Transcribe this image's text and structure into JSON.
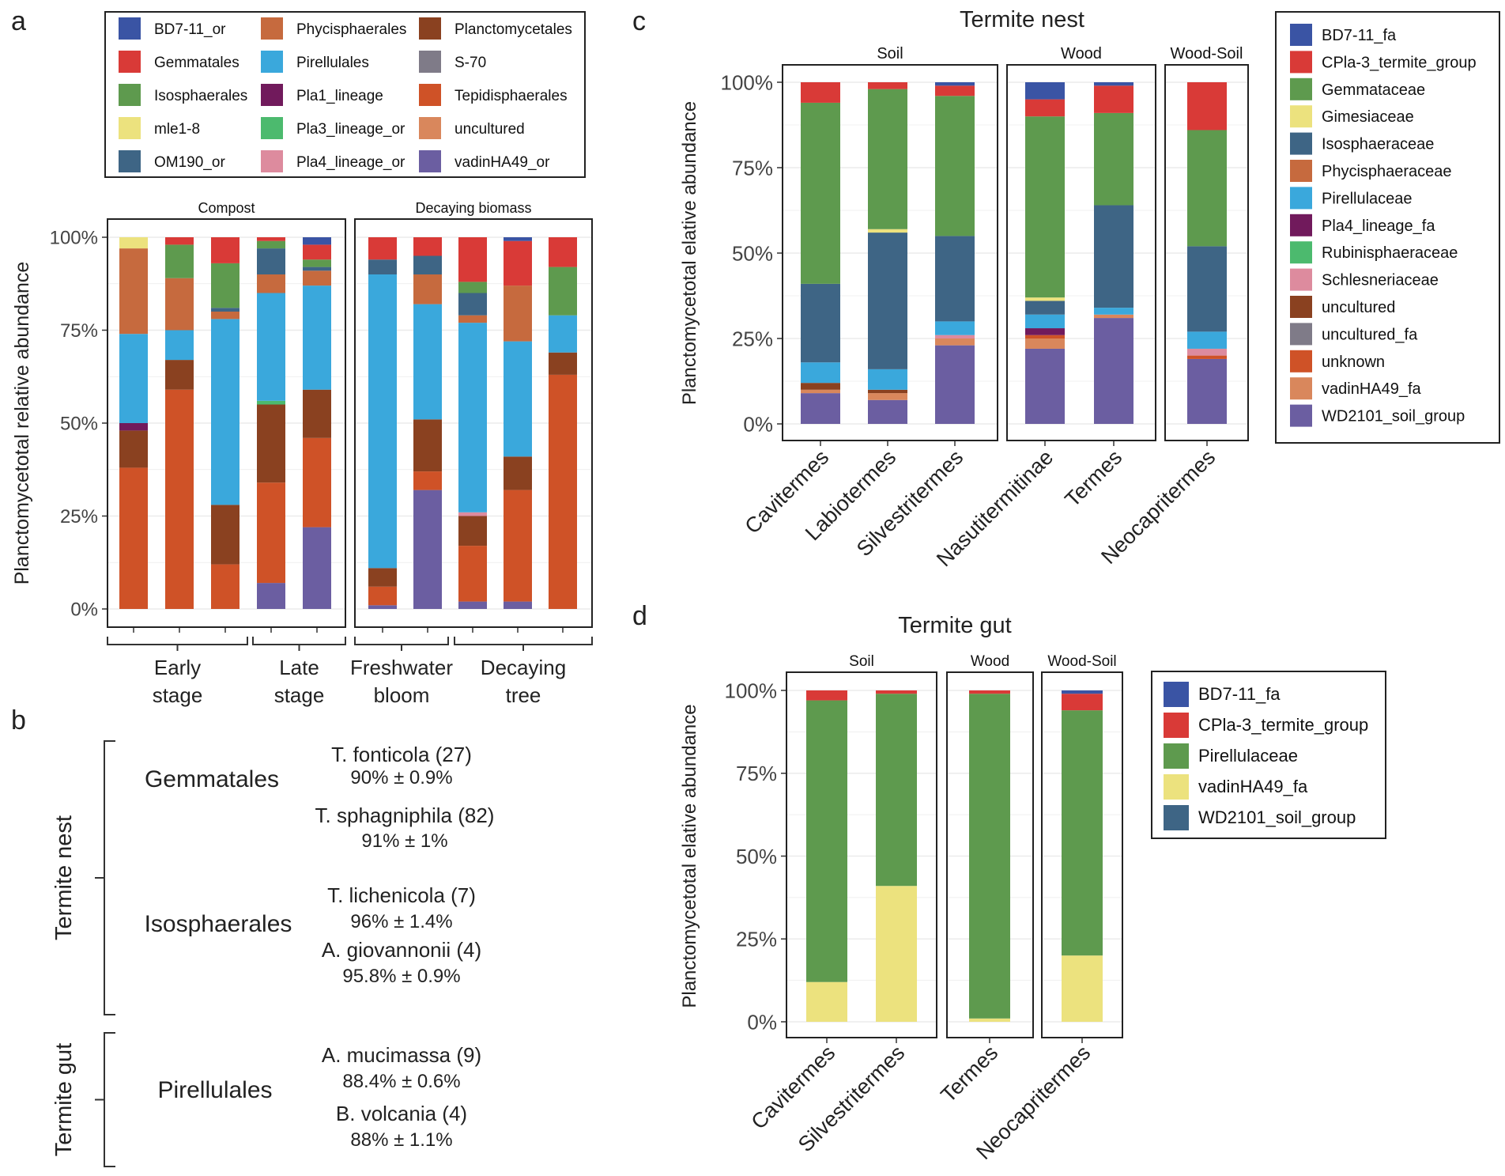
{
  "panel_letters": {
    "a": "a",
    "b": "b",
    "c": "c",
    "d": "d"
  },
  "chart_data": [
    {
      "panel": "a",
      "type": "bar",
      "stacked": true,
      "ylabel": "Planctomycetotal relative abundance",
      "yticks": [
        "0%",
        "25%",
        "50%",
        "75%",
        "100%"
      ],
      "ylim": [
        0,
        1
      ],
      "facets": [
        "Compost",
        "Decaying biomass"
      ],
      "groups": [
        {
          "label": [
            "Early",
            "stage"
          ]
        },
        {
          "label": [
            "Late",
            "stage"
          ]
        },
        {
          "label": [
            "Freshwater",
            "bloom"
          ]
        },
        {
          "label": [
            "Decaying",
            "tree"
          ]
        }
      ],
      "legend": [
        {
          "name": "BD7-11_or",
          "color": "#3a54a4"
        },
        {
          "name": "Gemmatales",
          "color": "#d93a37"
        },
        {
          "name": "Isosphaerales",
          "color": "#5e9a4e"
        },
        {
          "name": "mle1-8",
          "color": "#ece27e"
        },
        {
          "name": "OM190_or",
          "color": "#3e6585"
        },
        {
          "name": "Phycisphaerales",
          "color": "#c66a3e"
        },
        {
          "name": "Pirellulales",
          "color": "#3aa8dc"
        },
        {
          "name": "Pla1_lineage",
          "color": "#711a5c"
        },
        {
          "name": "Pla3_lineage_or",
          "color": "#4cba6e"
        },
        {
          "name": "Pla4_lineage_or",
          "color": "#dd8b9e"
        },
        {
          "name": "Planctomycetales",
          "color": "#8a4120"
        },
        {
          "name": "S-70",
          "color": "#7f7b88"
        },
        {
          "name": "Tepidisphaerales",
          "color": "#cf5227"
        },
        {
          "name": "uncultured",
          "color": "#d9875c"
        },
        {
          "name": "vadinHA49_or",
          "color": "#6b5ea1"
        }
      ],
      "bars": [
        {
          "facet": 0,
          "segments": [
            [
              "Tepidisphaerales",
              0.38
            ],
            [
              "Planctomycetales",
              0.1
            ],
            [
              "Pla1_lineage",
              0.02
            ],
            [
              "Pirellulales",
              0.24
            ],
            [
              "Phycisphaerales",
              0.23
            ],
            [
              "mle1-8",
              0.03
            ]
          ]
        },
        {
          "facet": 0,
          "segments": [
            [
              "Tepidisphaerales",
              0.59
            ],
            [
              "Planctomycetales",
              0.08
            ],
            [
              "Pirellulales",
              0.08
            ],
            [
              "Phycisphaerales",
              0.14
            ],
            [
              "Isosphaerales",
              0.09
            ],
            [
              "Gemmatales",
              0.02
            ]
          ]
        },
        {
          "facet": 0,
          "segments": [
            [
              "Tepidisphaerales",
              0.12
            ],
            [
              "Planctomycetales",
              0.16
            ],
            [
              "Pirellulales",
              0.5
            ],
            [
              "Phycisphaerales",
              0.02
            ],
            [
              "OM190_or",
              0.01
            ],
            [
              "Isosphaerales",
              0.12
            ],
            [
              "Gemmatales",
              0.07
            ]
          ]
        },
        {
          "facet": 0,
          "segments": [
            [
              "vadinHA49_or",
              0.07
            ],
            [
              "Tepidisphaerales",
              0.27
            ],
            [
              "Planctomycetales",
              0.21
            ],
            [
              "Pla3_lineage_or",
              0.01
            ],
            [
              "Pirellulales",
              0.29
            ],
            [
              "Phycisphaerales",
              0.05
            ],
            [
              "OM190_or",
              0.07
            ],
            [
              "Isosphaerales",
              0.02
            ],
            [
              "Gemmatales",
              0.01
            ]
          ]
        },
        {
          "facet": 0,
          "segments": [
            [
              "vadinHA49_or",
              0.22
            ],
            [
              "Tepidisphaerales",
              0.24
            ],
            [
              "Planctomycetales",
              0.13
            ],
            [
              "Pirellulales",
              0.28
            ],
            [
              "Phycisphaerales",
              0.04
            ],
            [
              "OM190_or",
              0.01
            ],
            [
              "Isosphaerales",
              0.02
            ],
            [
              "Gemmatales",
              0.04
            ],
            [
              "BD7-11_or",
              0.02
            ]
          ]
        },
        {
          "facet": 1,
          "segments": [
            [
              "vadinHA49_or",
              0.01
            ],
            [
              "Tepidisphaerales",
              0.05
            ],
            [
              "Planctomycetales",
              0.05
            ],
            [
              "Pirellulales",
              0.79
            ],
            [
              "OM190_or",
              0.04
            ],
            [
              "Gemmatales",
              0.06
            ]
          ]
        },
        {
          "facet": 1,
          "segments": [
            [
              "vadinHA49_or",
              0.32
            ],
            [
              "Tepidisphaerales",
              0.05
            ],
            [
              "Planctomycetales",
              0.14
            ],
            [
              "Pirellulales",
              0.31
            ],
            [
              "Phycisphaerales",
              0.08
            ],
            [
              "OM190_or",
              0.05
            ],
            [
              "Gemmatales",
              0.05
            ]
          ]
        },
        {
          "facet": 1,
          "segments": [
            [
              "vadinHA49_or",
              0.02
            ],
            [
              "Tepidisphaerales",
              0.15
            ],
            [
              "Planctomycetales",
              0.08
            ],
            [
              "Pla4_lineage_or",
              0.01
            ],
            [
              "Pirellulales",
              0.51
            ],
            [
              "Phycisphaerales",
              0.02
            ],
            [
              "OM190_or",
              0.06
            ],
            [
              "Isosphaerales",
              0.03
            ],
            [
              "Gemmatales",
              0.12
            ]
          ]
        },
        {
          "facet": 1,
          "segments": [
            [
              "vadinHA49_or",
              0.02
            ],
            [
              "Tepidisphaerales",
              0.3
            ],
            [
              "Planctomycetales",
              0.09
            ],
            [
              "Pirellulales",
              0.31
            ],
            [
              "Phycisphaerales",
              0.15
            ],
            [
              "Gemmatales",
              0.12
            ],
            [
              "BD7-11_or",
              0.01
            ]
          ]
        },
        {
          "facet": 1,
          "segments": [
            [
              "Tepidisphaerales",
              0.63
            ],
            [
              "Planctomycetales",
              0.06
            ],
            [
              "Pirellulales",
              0.1
            ],
            [
              "Isosphaerales",
              0.13
            ],
            [
              "Gemmatales",
              0.08
            ]
          ]
        }
      ]
    },
    {
      "panel": "c",
      "type": "bar",
      "stacked": true,
      "title": "Termite nest",
      "ylabel": "Planctomycetotal  elative abundance",
      "yticks": [
        "0%",
        "25%",
        "50%",
        "75%",
        "100%"
      ],
      "ylim": [
        0,
        1
      ],
      "facets": [
        "Soil",
        "Wood",
        "Wood-Soil"
      ],
      "categories": [
        "Cavitermes",
        "Labiotermes",
        "Silvestritermes",
        "Nasutitermitinae",
        "Termes",
        "Neocapritermes"
      ],
      "legend": [
        {
          "name": "BD7-11_fa",
          "color": "#3a54a4"
        },
        {
          "name": "CPla-3_termite_group",
          "color": "#d93a37"
        },
        {
          "name": "Gemmataceae",
          "color": "#5e9a4e"
        },
        {
          "name": "Gimesiaceae",
          "color": "#ece27e"
        },
        {
          "name": "Isosphaeraceae",
          "color": "#3e6585"
        },
        {
          "name": "Phycisphaeraceae",
          "color": "#c66a3e"
        },
        {
          "name": "Pirellulaceae",
          "color": "#3aa8dc"
        },
        {
          "name": "Pla4_lineage_fa",
          "color": "#711a5c"
        },
        {
          "name": "Rubinisphaeraceae",
          "color": "#4cba6e"
        },
        {
          "name": "Schlesneriaceae",
          "color": "#dd8b9e"
        },
        {
          "name": "uncultured",
          "color": "#8a4120"
        },
        {
          "name": "uncultured_fa",
          "color": "#7f7b88"
        },
        {
          "name": "unknown",
          "color": "#cf5227"
        },
        {
          "name": "vadinHA49_fa",
          "color": "#d9875c"
        },
        {
          "name": "WD2101_soil_group",
          "color": "#6b5ea1"
        }
      ],
      "bars": [
        {
          "facet": 0,
          "segments": [
            [
              "WD2101_soil_group",
              0.09
            ],
            [
              "vadinHA49_fa",
              0.01
            ],
            [
              "uncultured",
              0.02
            ],
            [
              "Pirellulaceae",
              0.06
            ],
            [
              "Isosphaeraceae",
              0.23
            ],
            [
              "Gemmataceae",
              0.53
            ],
            [
              "CPla-3_termite_group",
              0.06
            ]
          ]
        },
        {
          "facet": 0,
          "segments": [
            [
              "WD2101_soil_group",
              0.07
            ],
            [
              "vadinHA49_fa",
              0.02
            ],
            [
              "uncultured",
              0.01
            ],
            [
              "Pirellulaceae",
              0.06
            ],
            [
              "Isosphaeraceae",
              0.4
            ],
            [
              "Gimesiaceae",
              0.01
            ],
            [
              "Gemmataceae",
              0.41
            ],
            [
              "CPla-3_termite_group",
              0.02
            ]
          ]
        },
        {
          "facet": 0,
          "segments": [
            [
              "WD2101_soil_group",
              0.23
            ],
            [
              "vadinHA49_fa",
              0.02
            ],
            [
              "Schlesneriaceae",
              0.01
            ],
            [
              "Pirellulaceae",
              0.04
            ],
            [
              "Isosphaeraceae",
              0.25
            ],
            [
              "Gemmataceae",
              0.41
            ],
            [
              "CPla-3_termite_group",
              0.03
            ],
            [
              "BD7-11_fa",
              0.01
            ]
          ]
        },
        {
          "facet": 1,
          "segments": [
            [
              "WD2101_soil_group",
              0.22
            ],
            [
              "vadinHA49_fa",
              0.03
            ],
            [
              "unknown",
              0.01
            ],
            [
              "Pla4_lineage_fa",
              0.02
            ],
            [
              "Pirellulaceae",
              0.04
            ],
            [
              "Isosphaeraceae",
              0.04
            ],
            [
              "Gimesiaceae",
              0.01
            ],
            [
              "Gemmataceae",
              0.53
            ],
            [
              "CPla-3_termite_group",
              0.05
            ],
            [
              "BD7-11_fa",
              0.05
            ]
          ]
        },
        {
          "facet": 1,
          "segments": [
            [
              "WD2101_soil_group",
              0.31
            ],
            [
              "vadinHA49_fa",
              0.01
            ],
            [
              "Pirellulaceae",
              0.02
            ],
            [
              "Isosphaeraceae",
              0.3
            ],
            [
              "Gemmataceae",
              0.27
            ],
            [
              "CPla-3_termite_group",
              0.08
            ],
            [
              "BD7-11_fa",
              0.01
            ]
          ]
        },
        {
          "facet": 2,
          "segments": [
            [
              "WD2101_soil_group",
              0.19
            ],
            [
              "unknown",
              0.01
            ],
            [
              "Schlesneriaceae",
              0.02
            ],
            [
              "Pirellulaceae",
              0.05
            ],
            [
              "Isosphaeraceae",
              0.25
            ],
            [
              "Gemmataceae",
              0.34
            ],
            [
              "CPla-3_termite_group",
              0.14
            ]
          ]
        }
      ]
    },
    {
      "panel": "d",
      "type": "bar",
      "stacked": true,
      "title": "Termite gut",
      "ylabel": "Planctomycetotal  elative abundance",
      "yticks": [
        "0%",
        "25%",
        "50%",
        "75%",
        "100%"
      ],
      "ylim": [
        0,
        1
      ],
      "facets": [
        "Soil",
        "Wood",
        "Wood-Soil"
      ],
      "categories": [
        "Cavitermes",
        "Silvestritermes",
        "Termes",
        "Neocapritermes"
      ],
      "legend": [
        {
          "name": "BD7-11_fa",
          "color": "#3a54a4"
        },
        {
          "name": "CPla-3_termite_group",
          "color": "#d93a37"
        },
        {
          "name": "Pirellulaceae",
          "color": "#5e9a4e"
        },
        {
          "name": "vadinHA49_fa",
          "color": "#ece27e"
        },
        {
          "name": "WD2101_soil_group",
          "color": "#3e6585"
        }
      ],
      "bars": [
        {
          "facet": 0,
          "segments": [
            [
              "vadinHA49_fa",
              0.12
            ],
            [
              "Pirellulaceae",
              0.85
            ],
            [
              "CPla-3_termite_group",
              0.03
            ]
          ]
        },
        {
          "facet": 0,
          "segments": [
            [
              "vadinHA49_fa",
              0.41
            ],
            [
              "Pirellulaceae",
              0.58
            ],
            [
              "CPla-3_termite_group",
              0.01
            ]
          ]
        },
        {
          "facet": 1,
          "segments": [
            [
              "vadinHA49_fa",
              0.01
            ],
            [
              "Pirellulaceae",
              0.98
            ],
            [
              "CPla-3_termite_group",
              0.01
            ]
          ]
        },
        {
          "facet": 2,
          "segments": [
            [
              "vadinHA49_fa",
              0.2
            ],
            [
              "Pirellulaceae",
              0.74
            ],
            [
              "CPla-3_termite_group",
              0.05
            ],
            [
              "BD7-11_fa",
              0.01
            ]
          ]
        }
      ]
    }
  ],
  "panel_b": {
    "sections": [
      {
        "label": "Termite nest",
        "orders": [
          {
            "order": "Gemmatales",
            "species": [
              {
                "name": "T. fonticola (27)",
                "value": "90% ± 0.9%"
              },
              {
                "name": "T. sphagniphila (82)",
                "value": "91% ± 1%"
              }
            ]
          },
          {
            "order": "Isosphaerales",
            "species": [
              {
                "name": "T. lichenicola (7)",
                "value": "96% ± 1.4%"
              },
              {
                "name": "A. giovannonii (4)",
                "value": "95.8% ± 0.9%"
              }
            ]
          }
        ]
      },
      {
        "label": "Termite gut",
        "orders": [
          {
            "order": "Pirellulales",
            "species": [
              {
                "name": "A. mucimassa (9)",
                "value": "88.4% ± 0.6%"
              },
              {
                "name": "B. volcania (4)",
                "value": "88% ± 1.1%"
              }
            ]
          }
        ]
      }
    ]
  }
}
